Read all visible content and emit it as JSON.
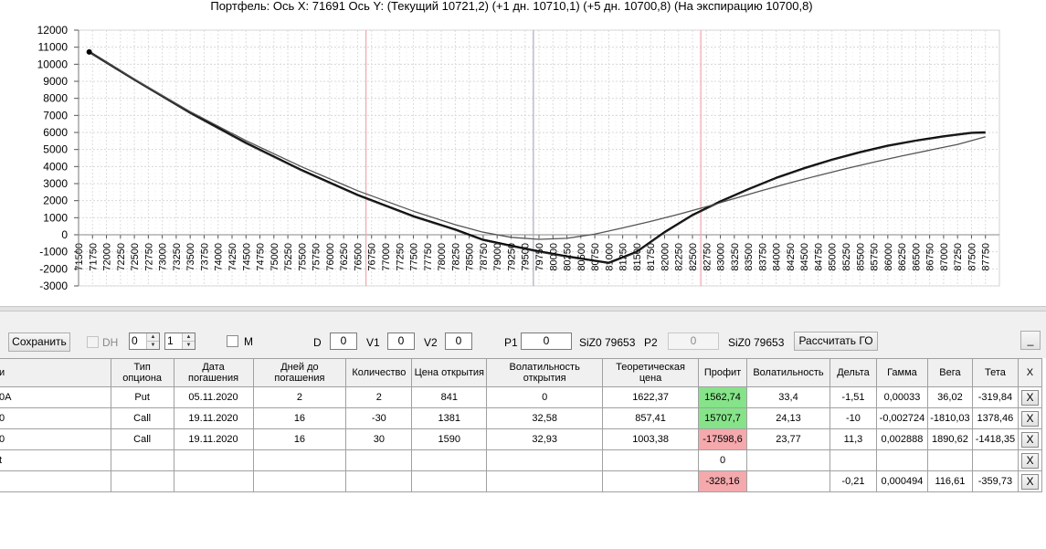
{
  "chart_data": {
    "type": "line",
    "title": "Портфель: Ось X: 71691 Ось Y:  (Текущий 10721,2)  (+1 дн. 10710,1)  (+5 дн. 10700,8)  (На экспирацию 10700,8)",
    "xlim": [
      71500,
      88000
    ],
    "ylim": [
      -3000,
      12000
    ],
    "y_ticks": [
      12000,
      11000,
      10000,
      9000,
      8000,
      7000,
      6000,
      5000,
      4000,
      3000,
      2000,
      1000,
      0,
      -1000,
      -2000,
      -3000
    ],
    "x_ticks": [
      71500,
      71750,
      72000,
      72250,
      72500,
      72750,
      73000,
      73250,
      73500,
      73750,
      74000,
      74250,
      74500,
      74750,
      75000,
      75250,
      75500,
      75750,
      76000,
      76250,
      76500,
      76750,
      77000,
      77250,
      77500,
      77750,
      78000,
      78250,
      78500,
      78750,
      79000,
      79250,
      79500,
      79750,
      80000,
      80250,
      80500,
      80750,
      81000,
      81250,
      81500,
      81750,
      82000,
      82250,
      82500,
      82750,
      83000,
      83250,
      83500,
      83750,
      84000,
      84250,
      84500,
      84750,
      85000,
      85250,
      85500,
      85750,
      86000,
      86250,
      86500,
      86750,
      87000,
      87250,
      87500,
      87750
    ],
    "grid": true,
    "vertical_markers": [
      {
        "x": 76650,
        "color": "#f4a6ae"
      },
      {
        "x": 79650,
        "color": "#a6aebd"
      },
      {
        "x": 82650,
        "color": "#f4a6ae"
      }
    ],
    "cursor_point": {
      "x": 71691,
      "y": 10721.2
    },
    "series": [
      {
        "color": "#000000",
        "width": 2.4,
        "x": [
          71691,
          72500,
          73500,
          74500,
          75500,
          76500,
          77500,
          78250,
          78750,
          79250,
          79700,
          80250,
          80700,
          81000,
          81500,
          82000,
          82500,
          83000,
          83500,
          84000,
          84500,
          85000,
          85500,
          86000,
          86500,
          87000,
          87500,
          87750
        ],
        "y": [
          10721,
          9100,
          7150,
          5380,
          3780,
          2330,
          1080,
          300,
          -300,
          -650,
          -950,
          -1270,
          -1500,
          -1650,
          -1000,
          150,
          1150,
          1950,
          2670,
          3330,
          3900,
          4400,
          4840,
          5220,
          5520,
          5770,
          5980,
          6000
        ]
      },
      {
        "color": "#555555",
        "width": 1.3,
        "x": [
          71691,
          72500,
          73500,
          74500,
          75500,
          76500,
          77500,
          78250,
          78750,
          79250,
          79750,
          80250,
          80750,
          81250,
          81750,
          82250,
          82750,
          83250,
          83750,
          84250,
          84750,
          85250,
          85750,
          86250,
          86750,
          87250,
          87750
        ],
        "y": [
          10710,
          9130,
          7220,
          5520,
          3980,
          2580,
          1380,
          590,
          150,
          -150,
          -270,
          -210,
          40,
          400,
          780,
          1200,
          1650,
          2120,
          2600,
          3050,
          3470,
          3880,
          4260,
          4620,
          4960,
          5300,
          5750
        ]
      },
      {
        "color": "#333333",
        "width": 1.0,
        "x": [
          71691,
          72500,
          73500,
          74500,
          75500,
          76500,
          77500,
          78250,
          78750,
          79250,
          79700,
          80250,
          80700,
          81000,
          81500,
          82000,
          82500,
          83000,
          83500,
          84000,
          84500,
          85000,
          85500,
          86000,
          86500,
          87000,
          87500,
          87750
        ],
        "y": [
          10700,
          9080,
          7120,
          5350,
          3750,
          2300,
          1050,
          270,
          -330,
          -680,
          -980,
          -1300,
          -1530,
          -1680,
          -1030,
          120,
          1120,
          1920,
          2640,
          3300,
          3870,
          4370,
          4810,
          5190,
          5490,
          5740,
          5950,
          5970
        ]
      }
    ]
  },
  "toolbar": {
    "save_label": "Сохранить",
    "dh_label": "DH",
    "spin1_value": "0",
    "spin2_value": "1",
    "m_label": "M",
    "d_label": "D",
    "d_value": "0",
    "v1_label": "V1",
    "v1_value": "0",
    "v2_label": "V2",
    "v2_value": "0",
    "p1_label": "P1",
    "p1_value": "0",
    "p1_ticker": "SiZ0 79653",
    "p2_label": "P2",
    "p2_value": "0",
    "p2_ticker": "SiZ0 79653",
    "calc_label": "Рассчитать ГО",
    "minimize_label": "_"
  },
  "grid": {
    "headers": [
      "и",
      "Тип опциона",
      "Дата погашения",
      "Дней до погашения",
      "Количество",
      "Цена открытия",
      "Волатильность открытия",
      "Теоретическая цена",
      "Профит",
      "Волатильность",
      "Дельта",
      "Гамма",
      "Вега",
      "Тета",
      "X"
    ],
    "rows": [
      {
        "c0": "0A",
        "c1": "Put",
        "c2": "05.11.2020",
        "c3": "2",
        "c4": "2",
        "c5": "841",
        "c6": "0",
        "c7": "1622,37",
        "c8": "1562,74",
        "c9": "33,4",
        "c10": "-1,51",
        "c11": "0,00033",
        "c12": "36,02",
        "c13": "-319,84",
        "x": "X"
      },
      {
        "c0": "0",
        "c1": "Call",
        "c2": "19.11.2020",
        "c3": "16",
        "c4": "-30",
        "c5": "1381",
        "c6": "32,58",
        "c7": "857,41",
        "c8": "15707,7",
        "c9": "24,13",
        "c10": "-10",
        "c11": "-0,002724",
        "c12": "-1810,03",
        "c13": "1378,46",
        "x": "X"
      },
      {
        "c0": "0",
        "c1": "Call",
        "c2": "19.11.2020",
        "c3": "16",
        "c4": "30",
        "c5": "1590",
        "c6": "32,93",
        "c7": "1003,38",
        "c8": "-17598,6",
        "c9": "23,77",
        "c10": "11,3",
        "c11": "0,002888",
        "c12": "1890,62",
        "c13": "-1418,35",
        "x": "X"
      },
      {
        "c0": "t",
        "c1": "",
        "c2": "",
        "c3": "",
        "c4": "",
        "c5": "",
        "c6": "",
        "c7": "",
        "c8": "0",
        "c9": "",
        "c10": "",
        "c11": "",
        "c12": "",
        "c13": "",
        "x": "X"
      },
      {
        "c0": "",
        "c1": "",
        "c2": "",
        "c3": "",
        "c4": "",
        "c5": "",
        "c6": "",
        "c7": "",
        "c8": "-328,16",
        "c9": "",
        "c10": "-0,21",
        "c11": "0,000494",
        "c12": "116,61",
        "c13": "-359,73",
        "x": "X"
      }
    ],
    "profit_colors": [
      "green",
      "green",
      "red",
      "",
      "red"
    ]
  }
}
